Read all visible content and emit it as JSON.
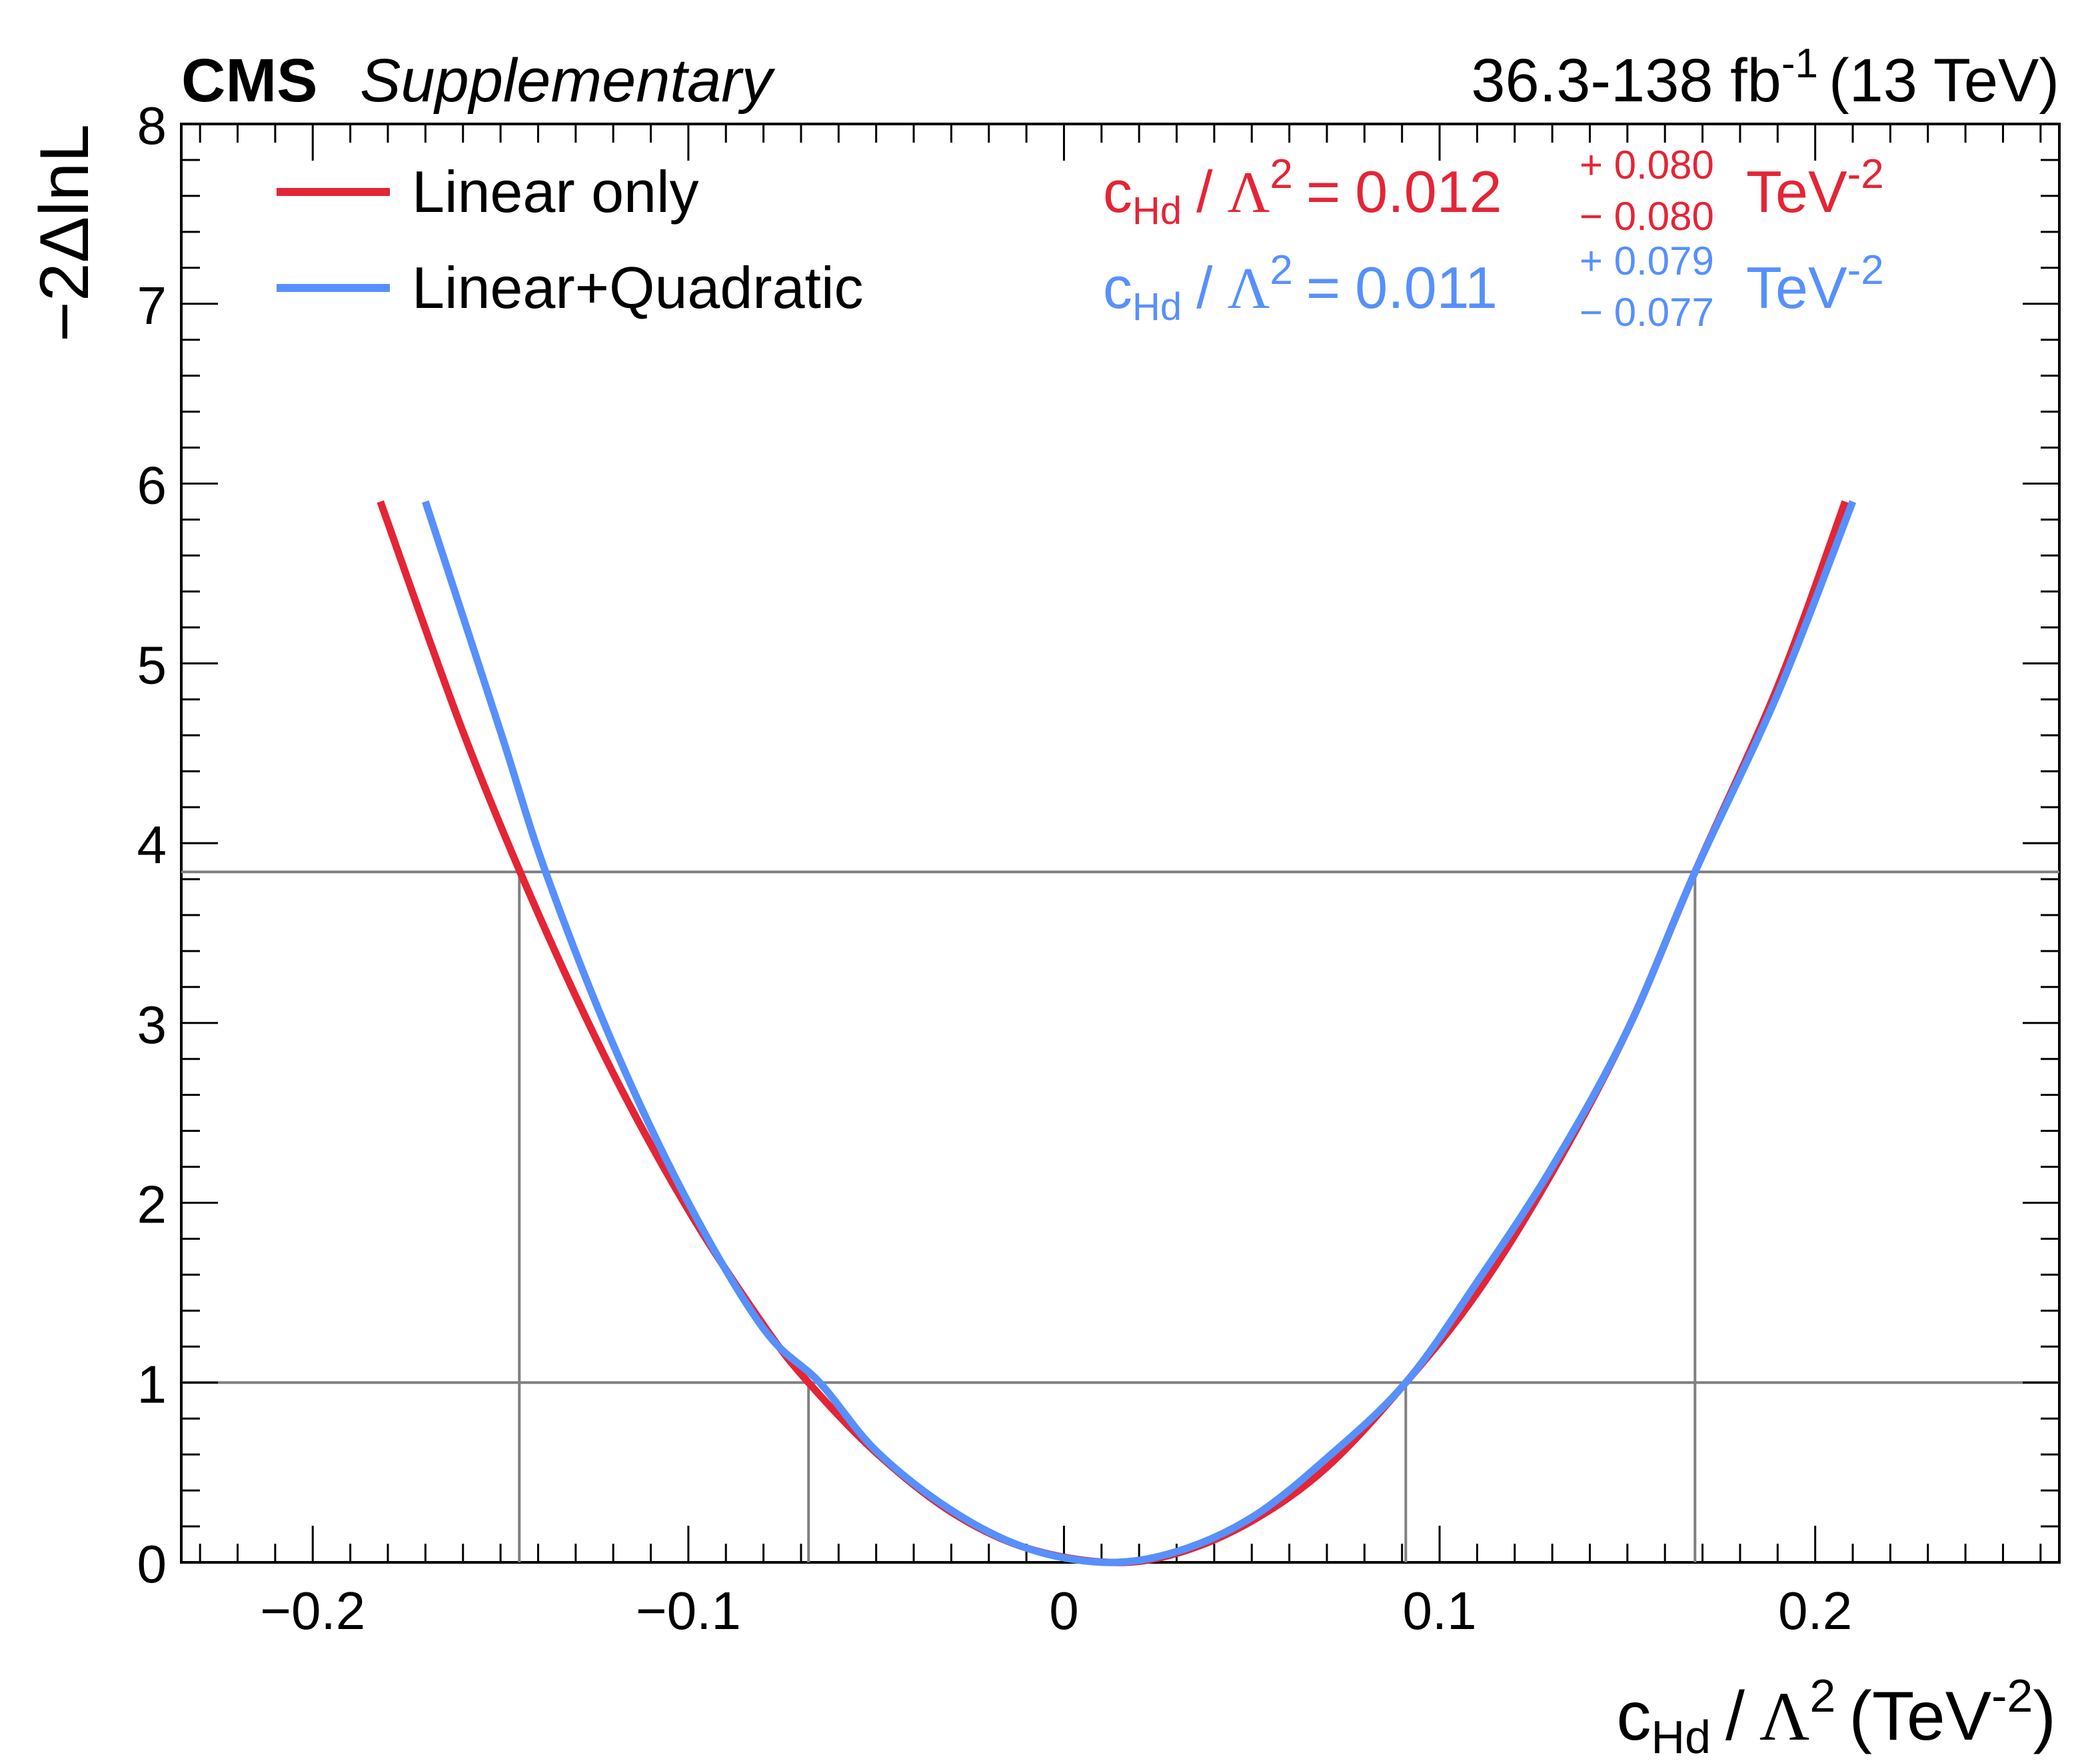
{
  "chart_data": {
    "type": "line",
    "header": {
      "experiment": "CMS",
      "label": "Supplementary",
      "lumi": "36.3-138 fb",
      "lumi_exp": "-1",
      "energy": "(13 TeV)"
    },
    "xlabel": {
      "c": "c",
      "sub": "Hd",
      "slash": "/",
      "lambda": "Λ",
      "sq": "2",
      "unit": "(TeV",
      "unit_exp": "-2",
      "close": ")"
    },
    "ylabel": "−2ΔlnL",
    "xlim": [
      -0.235,
      0.265
    ],
    "ylim": [
      0,
      8
    ],
    "xticks": [
      {
        "v": -0.2,
        "label": "−0.2"
      },
      {
        "v": -0.1,
        "label": "−0.1"
      },
      {
        "v": 0,
        "label": "0"
      },
      {
        "v": 0.1,
        "label": "0.1"
      },
      {
        "v": 0.2,
        "label": "0.2"
      }
    ],
    "yticks": [
      {
        "v": 0,
        "label": "0"
      },
      {
        "v": 1,
        "label": "1"
      },
      {
        "v": 2,
        "label": "2"
      },
      {
        "v": 3,
        "label": "3"
      },
      {
        "v": 4,
        "label": "4"
      },
      {
        "v": 5,
        "label": "5"
      },
      {
        "v": 6,
        "label": "6"
      },
      {
        "v": 7,
        "label": "7"
      },
      {
        "v": 8,
        "label": "8"
      }
    ],
    "reference_lines": {
      "horizontal": [
        1.0,
        3.84
      ],
      "vertical": [
        {
          "x": -0.145,
          "y": 3.84
        },
        {
          "x": -0.068,
          "y": 1.0
        },
        {
          "x": 0.091,
          "y": 1.0
        },
        {
          "x": 0.168,
          "y": 3.84
        }
      ]
    },
    "series": [
      {
        "name": "Linear only",
        "color": "#e42536",
        "x": [
          -0.182,
          -0.16,
          -0.14,
          -0.12,
          -0.1,
          -0.08,
          -0.068,
          -0.05,
          -0.03,
          -0.01,
          0.012,
          0.03,
          0.05,
          0.07,
          0.091,
          0.11,
          0.13,
          0.15,
          0.168,
          0.19,
          0.208
        ],
        "y": [
          5.9,
          4.62,
          3.61,
          2.72,
          1.96,
          1.32,
          1.0,
          0.61,
          0.28,
          0.08,
          0.0,
          0.05,
          0.23,
          0.53,
          1.0,
          1.5,
          2.17,
          2.96,
          3.84,
          4.87,
          5.9
        ]
      },
      {
        "name": "Linear+Quadratic",
        "color": "#5790fc",
        "x": [
          -0.17,
          -0.15,
          -0.138,
          -0.12,
          -0.1,
          -0.08,
          -0.065,
          -0.05,
          -0.03,
          -0.01,
          0.011,
          0.03,
          0.05,
          0.07,
          0.091,
          0.11,
          0.13,
          0.15,
          0.168,
          0.19,
          0.21
        ],
        "y": [
          5.9,
          4.62,
          3.84,
          2.88,
          2.0,
          1.3,
          1.0,
          0.62,
          0.29,
          0.08,
          0.0,
          0.06,
          0.25,
          0.58,
          1.0,
          1.56,
          2.2,
          2.96,
          3.84,
          4.83,
          5.9
        ]
      }
    ],
    "legend": [
      {
        "label": "Linear only",
        "color": "#e42536"
      },
      {
        "label": "Linear+Quadratic",
        "color": "#5790fc"
      }
    ],
    "results": [
      {
        "c": "c",
        "sub": "Hd",
        "slash": "/",
        "lambda": "Λ",
        "sq": "2",
        "eq": "=",
        "value": "0.012",
        "plus": "+ 0.080",
        "minus": "− 0.080",
        "unit": "TeV",
        "unit_exp": "-2",
        "color": "#e42536"
      },
      {
        "c": "c",
        "sub": "Hd",
        "slash": "/",
        "lambda": "Λ",
        "sq": "2",
        "eq": "=",
        "value": "0.011",
        "plus": "+ 0.079",
        "minus": "− 0.077",
        "unit": "TeV",
        "unit_exp": "-2",
        "color": "#5790fc"
      }
    ],
    "grid": false
  }
}
